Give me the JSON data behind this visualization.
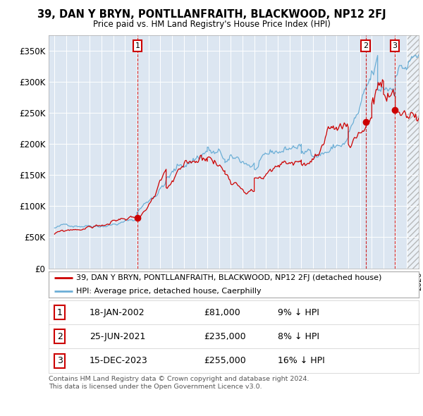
{
  "title": "39, DAN Y BRYN, PONTLLANFRAITH, BLACKWOOD, NP12 2FJ",
  "subtitle": "Price paid vs. HM Land Registry's House Price Index (HPI)",
  "ytick_values": [
    0,
    50000,
    100000,
    150000,
    200000,
    250000,
    300000,
    350000
  ],
  "ylim": [
    0,
    375000
  ],
  "xlim_start": 1994.5,
  "xlim_end": 2026.0,
  "hpi_color": "#6baed6",
  "price_color": "#cc0000",
  "vline_color": "#cc0000",
  "sale_dates": [
    2002.05,
    2021.48,
    2023.96
  ],
  "sale_prices": [
    81000,
    235000,
    255000
  ],
  "sale_labels": [
    "1",
    "2",
    "3"
  ],
  "legend_price_label": "39, DAN Y BRYN, PONTLLANFRAITH, BLACKWOOD, NP12 2FJ (detached house)",
  "legend_hpi_label": "HPI: Average price, detached house, Caerphilly",
  "table_rows": [
    [
      "1",
      "18-JAN-2002",
      "£81,000",
      "9% ↓ HPI"
    ],
    [
      "2",
      "25-JUN-2021",
      "£235,000",
      "8% ↓ HPI"
    ],
    [
      "3",
      "15-DEC-2023",
      "£255,000",
      "16% ↓ HPI"
    ]
  ],
  "footnote": "Contains HM Land Registry data © Crown copyright and database right 2024.\nThis data is licensed under the Open Government Licence v3.0.",
  "bg_color": "#dce6f1",
  "future_shade_start": 2025.0
}
